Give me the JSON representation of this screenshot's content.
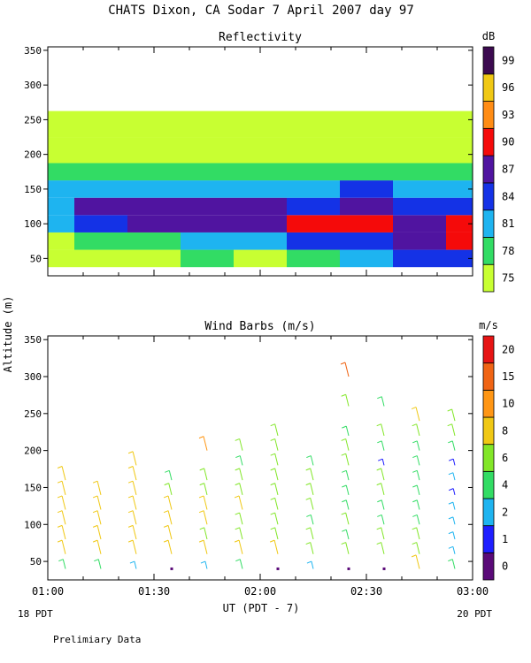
{
  "title": "CHATS Dixon, CA  Sodar    7 April 2007   day  97",
  "ylabel": "Altitude (m)",
  "xlabel": "UT  (PDT - 7)",
  "x_left_note": "18 PDT",
  "x_right_note": "20 PDT",
  "footer_note": "Prelimiary Data",
  "chart_data": [
    {
      "type": "heatmap",
      "title": "Reflectivity",
      "colorbar_unit": "dB",
      "x_ticks": [
        "01:00",
        "01:30",
        "02:00",
        "02:30",
        "03:00"
      ],
      "xlim": [
        "01:00",
        "03:00"
      ],
      "ylim": [
        25,
        355
      ],
      "y_ticks": [
        50,
        100,
        150,
        200,
        250,
        300,
        350
      ],
      "color_levels": [
        {
          "value": "75",
          "color": "#c8ff32"
        },
        {
          "value": "78",
          "color": "#32dc64"
        },
        {
          "value": "81",
          "color": "#1eb4f0"
        },
        {
          "value": "84",
          "color": "#1432e6"
        },
        {
          "value": "87",
          "color": "#5014a0"
        },
        {
          "value": "90",
          "color": "#f50a0a"
        },
        {
          "value": "93",
          "color": "#ff8c14"
        },
        {
          "value": "96",
          "color": "#f0c814"
        },
        {
          "value": "99",
          "color": "#3c0a50"
        }
      ],
      "profile_dB": [
        {
          "alt_m": 50,
          "dB": [
            75,
            76,
            77,
            78,
            76,
            79,
            81,
            84,
            86
          ]
        },
        {
          "alt_m": 75,
          "dB": [
            77,
            79,
            80,
            82,
            82,
            84,
            86,
            87,
            92
          ]
        },
        {
          "alt_m": 100,
          "dB": [
            81,
            86,
            88,
            88,
            89,
            91,
            91,
            89,
            90
          ]
        },
        {
          "alt_m": 125,
          "dB": [
            83,
            87,
            88,
            88,
            87,
            86,
            87,
            85,
            86
          ]
        },
        {
          "alt_m": 150,
          "dB": [
            82,
            81,
            82,
            83,
            83,
            83,
            84,
            82,
            82
          ]
        },
        {
          "alt_m": 175,
          "dB": [
            78,
            78,
            78,
            78,
            79,
            80,
            80,
            78,
            78
          ]
        },
        {
          "alt_m": 200,
          "dB": [
            76,
            75,
            74,
            75,
            76,
            76,
            76,
            75,
            76
          ]
        },
        {
          "alt_m": 250,
          "dB": [
            76,
            74,
            73,
            73,
            73,
            74,
            76,
            74,
            75
          ]
        }
      ],
      "profile_times": [
        "01:00",
        "01:15",
        "01:30",
        "01:45",
        "02:00",
        "02:15",
        "02:30",
        "02:45",
        "03:00"
      ]
    },
    {
      "type": "scatter",
      "title": "Wind Barbs (m/s)",
      "colorbar_unit": "m/s",
      "x_ticks": [
        "01:00",
        "01:30",
        "02:00",
        "02:30",
        "03:00"
      ],
      "xlim": [
        "01:00",
        "03:00"
      ],
      "ylim": [
        25,
        355
      ],
      "y_ticks": [
        50,
        100,
        150,
        200,
        250,
        300,
        350
      ],
      "color_levels": [
        {
          "value": "0",
          "color": "#5a0a78"
        },
        {
          "value": "1",
          "color": "#1e1eff"
        },
        {
          "value": "2",
          "color": "#1eb4f0"
        },
        {
          "value": "4",
          "color": "#32dc64"
        },
        {
          "value": "6",
          "color": "#82e628"
        },
        {
          "value": "8",
          "color": "#f0c814"
        },
        {
          "value": "10",
          "color": "#ff9614"
        },
        {
          "value": "15",
          "color": "#f06414"
        },
        {
          "value": "20",
          "color": "#e61414"
        }
      ],
      "barb_times": [
        "01:05",
        "01:15",
        "01:25",
        "01:35",
        "01:45",
        "01:55",
        "02:05",
        "02:15",
        "02:25",
        "02:35",
        "02:45",
        "02:55"
      ],
      "barbs": [
        {
          "time": "01:05",
          "points": [
            [
              40,
              4
            ],
            [
              60,
              8
            ],
            [
              80,
              8
            ],
            [
              100,
              8
            ],
            [
              120,
              8
            ],
            [
              140,
              8
            ],
            [
              160,
              8
            ]
          ]
        },
        {
          "time": "01:15",
          "points": [
            [
              40,
              4
            ],
            [
              60,
              8
            ],
            [
              80,
              8
            ],
            [
              100,
              8
            ],
            [
              120,
              8
            ],
            [
              140,
              8
            ]
          ]
        },
        {
          "time": "01:25",
          "points": [
            [
              40,
              2
            ],
            [
              60,
              8
            ],
            [
              80,
              8
            ],
            [
              100,
              8
            ],
            [
              120,
              8
            ],
            [
              140,
              8
            ],
            [
              160,
              8
            ],
            [
              180,
              8
            ]
          ]
        },
        {
          "time": "01:35",
          "points": [
            [
              40,
              0
            ],
            [
              60,
              8
            ],
            [
              80,
              8
            ],
            [
              100,
              8
            ],
            [
              120,
              8
            ],
            [
              140,
              6
            ],
            [
              160,
              4
            ]
          ]
        },
        {
          "time": "01:45",
          "points": [
            [
              40,
              2
            ],
            [
              60,
              8
            ],
            [
              80,
              6
            ],
            [
              100,
              8
            ],
            [
              120,
              8
            ],
            [
              140,
              6
            ],
            [
              160,
              6
            ],
            [
              200,
              10
            ]
          ]
        },
        {
          "time": "01:55",
          "points": [
            [
              40,
              4
            ],
            [
              60,
              8
            ],
            [
              80,
              6
            ],
            [
              100,
              6
            ],
            [
              120,
              8
            ],
            [
              140,
              6
            ],
            [
              160,
              6
            ],
            [
              180,
              4
            ],
            [
              200,
              6
            ]
          ]
        },
        {
          "time": "02:05",
          "points": [
            [
              40,
              0
            ],
            [
              60,
              8
            ],
            [
              80,
              6
            ],
            [
              100,
              6
            ],
            [
              120,
              6
            ],
            [
              140,
              6
            ],
            [
              160,
              6
            ],
            [
              180,
              6
            ],
            [
              200,
              6
            ],
            [
              220,
              6
            ]
          ]
        },
        {
          "time": "02:15",
          "points": [
            [
              40,
              2
            ],
            [
              60,
              6
            ],
            [
              80,
              6
            ],
            [
              100,
              4
            ],
            [
              120,
              6
            ],
            [
              140,
              6
            ],
            [
              160,
              6
            ],
            [
              180,
              4
            ]
          ]
        },
        {
          "time": "02:25",
          "points": [
            [
              40,
              0
            ],
            [
              60,
              6
            ],
            [
              80,
              4
            ],
            [
              100,
              6
            ],
            [
              120,
              4
            ],
            [
              140,
              4
            ],
            [
              160,
              4
            ],
            [
              180,
              6
            ],
            [
              200,
              6
            ],
            [
              220,
              4
            ],
            [
              260,
              6
            ],
            [
              300,
              15
            ]
          ]
        },
        {
          "time": "02:35",
          "points": [
            [
              40,
              0
            ],
            [
              60,
              6
            ],
            [
              80,
              6
            ],
            [
              100,
              4
            ],
            [
              120,
              4
            ],
            [
              140,
              6
            ],
            [
              160,
              6
            ],
            [
              180,
              1
            ],
            [
              200,
              4
            ],
            [
              220,
              6
            ],
            [
              260,
              4
            ]
          ]
        },
        {
          "time": "02:45",
          "points": [
            [
              40,
              8
            ],
            [
              60,
              6
            ],
            [
              80,
              6
            ],
            [
              100,
              4
            ],
            [
              120,
              4
            ],
            [
              140,
              4
            ],
            [
              160,
              4
            ],
            [
              180,
              4
            ],
            [
              200,
              4
            ],
            [
              220,
              6
            ],
            [
              240,
              8
            ]
          ]
        },
        {
          "time": "02:55",
          "points": [
            [
              40,
              4
            ],
            [
              60,
              2
            ],
            [
              80,
              2
            ],
            [
              100,
              2
            ],
            [
              120,
              2
            ],
            [
              140,
              1
            ],
            [
              160,
              2
            ],
            [
              180,
              1
            ],
            [
              200,
              4
            ],
            [
              220,
              6
            ],
            [
              240,
              6
            ]
          ]
        }
      ]
    }
  ]
}
